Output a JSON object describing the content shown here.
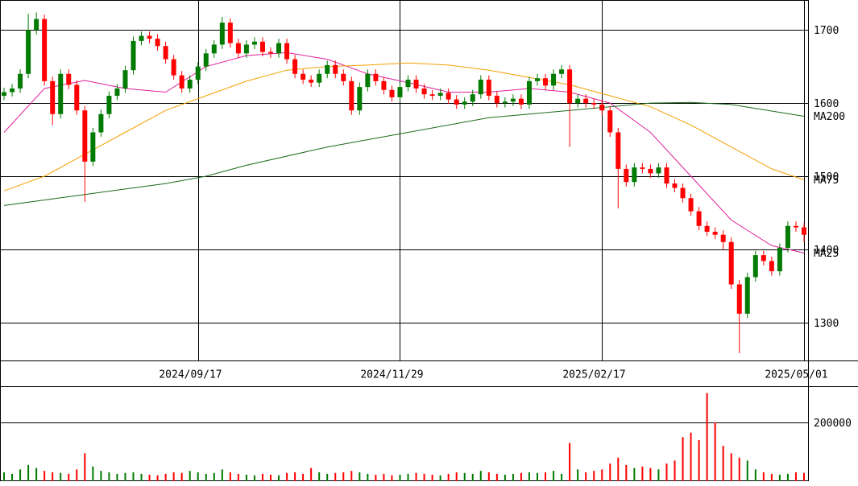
{
  "chart_data": {
    "type": "candlestick",
    "xlim": [
      -0.5,
      99.5
    ],
    "xticks": [
      {
        "value": 24,
        "label": "2024/09/17"
      },
      {
        "value": 49,
        "label": "2024/11/29"
      },
      {
        "value": 74,
        "label": "2025/02/17"
      },
      {
        "value": 99,
        "label": "2025/05/01"
      }
    ],
    "ylim": [
      1248,
      1741
    ],
    "yticks": [
      1300,
      1400,
      1500,
      1600,
      1700
    ],
    "volume_ylim": [
      0,
      323000
    ],
    "volume_yticks": [
      200000
    ],
    "up_color": "#007a00",
    "down_color": "#ff0000",
    "open": [
      1610,
      1615,
      1620,
      1640,
      1700,
      1715,
      1630,
      1585,
      1640,
      1625,
      1590,
      1520,
      1560,
      1585,
      1610,
      1620,
      1645,
      1685,
      1692,
      1688,
      1678,
      1660,
      1638,
      1620,
      1632,
      1650,
      1668,
      1680,
      1710,
      1682,
      1668,
      1680,
      1684,
      1670,
      1668,
      1682,
      1660,
      1640,
      1632,
      1628,
      1640,
      1652,
      1640,
      1630,
      1590,
      1622,
      1640,
      1630,
      1618,
      1608,
      1622,
      1632,
      1620,
      1612,
      1610,
      1614,
      1605,
      1598,
      1602,
      1612,
      1632,
      1610,
      1600,
      1602,
      1606,
      1598,
      1630,
      1634,
      1624,
      1640,
      1646,
      1600,
      1606,
      1600,
      1598,
      1590,
      1560,
      1510,
      1492,
      1512,
      1510,
      1504,
      1512,
      1490,
      1484,
      1470,
      1452,
      1432,
      1424,
      1420,
      1410,
      1352,
      1312,
      1362,
      1392,
      1384,
      1370,
      1402,
      1432,
      1430
    ],
    "high": [
      1621,
      1626,
      1646,
      1722,
      1724,
      1721,
      1636,
      1646,
      1646,
      1631,
      1596,
      1566,
      1591,
      1616,
      1626,
      1651,
      1691,
      1698,
      1698,
      1694,
      1684,
      1666,
      1644,
      1638,
      1656,
      1674,
      1686,
      1718,
      1716,
      1688,
      1686,
      1690,
      1690,
      1676,
      1688,
      1688,
      1666,
      1646,
      1638,
      1646,
      1658,
      1658,
      1646,
      1636,
      1628,
      1646,
      1646,
      1636,
      1624,
      1628,
      1638,
      1638,
      1626,
      1618,
      1620,
      1620,
      1611,
      1608,
      1618,
      1638,
      1638,
      1616,
      1608,
      1612,
      1612,
      1636,
      1640,
      1640,
      1646,
      1652,
      1652,
      1612,
      1612,
      1606,
      1604,
      1596,
      1566,
      1516,
      1518,
      1518,
      1516,
      1518,
      1518,
      1496,
      1490,
      1476,
      1458,
      1438,
      1430,
      1426,
      1416,
      1358,
      1368,
      1398,
      1398,
      1390,
      1408,
      1438,
      1438,
      1436
    ],
    "low": [
      1604,
      1609,
      1614,
      1634,
      1694,
      1624,
      1570,
      1579,
      1619,
      1584,
      1465,
      1514,
      1554,
      1579,
      1604,
      1614,
      1639,
      1679,
      1682,
      1672,
      1654,
      1632,
      1614,
      1614,
      1626,
      1644,
      1662,
      1674,
      1676,
      1662,
      1662,
      1674,
      1664,
      1662,
      1662,
      1654,
      1634,
      1626,
      1622,
      1622,
      1634,
      1634,
      1624,
      1584,
      1584,
      1616,
      1624,
      1612,
      1602,
      1602,
      1616,
      1614,
      1606,
      1604,
      1604,
      1599,
      1592,
      1592,
      1596,
      1606,
      1604,
      1594,
      1594,
      1596,
      1592,
      1592,
      1624,
      1618,
      1618,
      1634,
      1540,
      1594,
      1594,
      1592,
      1584,
      1554,
      1456,
      1486,
      1486,
      1504,
      1498,
      1498,
      1484,
      1478,
      1464,
      1446,
      1426,
      1418,
      1414,
      1400,
      1346,
      1258,
      1306,
      1356,
      1378,
      1364,
      1364,
      1396,
      1424,
      1410
    ],
    "close": [
      1615,
      1620,
      1640,
      1700,
      1715,
      1630,
      1585,
      1640,
      1625,
      1590,
      1520,
      1560,
      1585,
      1610,
      1620,
      1645,
      1685,
      1692,
      1688,
      1678,
      1660,
      1638,
      1620,
      1632,
      1650,
      1668,
      1680,
      1710,
      1682,
      1668,
      1680,
      1684,
      1670,
      1668,
      1682,
      1660,
      1640,
      1632,
      1628,
      1640,
      1652,
      1640,
      1630,
      1590,
      1622,
      1640,
      1630,
      1618,
      1608,
      1622,
      1632,
      1620,
      1612,
      1610,
      1614,
      1605,
      1598,
      1602,
      1612,
      1632,
      1610,
      1600,
      1602,
      1606,
      1598,
      1630,
      1634,
      1624,
      1640,
      1646,
      1600,
      1606,
      1600,
      1598,
      1590,
      1560,
      1510,
      1492,
      1512,
      1510,
      1504,
      1512,
      1490,
      1484,
      1470,
      1452,
      1432,
      1424,
      1420,
      1410,
      1352,
      1312,
      1362,
      1392,
      1384,
      1370,
      1402,
      1432,
      1430,
      1420
    ],
    "volume": [
      30000,
      25000,
      40000,
      55000,
      45000,
      35000,
      30000,
      28000,
      25000,
      40000,
      95000,
      50000,
      35000,
      30000,
      25000,
      28000,
      30000,
      25000,
      22000,
      20000,
      25000,
      30000,
      28000,
      35000,
      30000,
      25000,
      28000,
      40000,
      30000,
      25000,
      22000,
      20000,
      25000,
      22000,
      20000,
      28000,
      30000,
      25000,
      45000,
      30000,
      25000,
      28000,
      30000,
      35000,
      30000,
      25000,
      22000,
      25000,
      20000,
      22000,
      25000,
      28000,
      25000,
      22000,
      20000,
      25000,
      30000,
      28000,
      25000,
      35000,
      30000,
      25000,
      22000,
      25000,
      28000,
      30000,
      28000,
      30000,
      35000,
      25000,
      130000,
      40000,
      30000,
      35000,
      40000,
      60000,
      80000,
      55000,
      45000,
      50000,
      45000,
      40000,
      60000,
      70000,
      150000,
      165000,
      140000,
      300000,
      200000,
      120000,
      95000,
      80000,
      70000,
      40000,
      30000,
      25000,
      22000,
      25000,
      30000,
      28000
    ],
    "moving_averages": [
      {
        "name": "MA25",
        "color": "#e0209a",
        "x": [
          0,
          5,
          10,
          15,
          20,
          25,
          30,
          35,
          40,
          45,
          50,
          55,
          60,
          65,
          70,
          75,
          80,
          85,
          90,
          95,
          99
        ],
        "values": [
          1560,
          1620,
          1631,
          1620,
          1615,
          1650,
          1665,
          1669,
          1660,
          1640,
          1628,
          1615,
          1615,
          1620,
          1615,
          1600,
          1560,
          1500,
          1440,
          1405,
          1395
        ]
      },
      {
        "name": "MA75",
        "color": "#f5a000",
        "x": [
          0,
          5,
          10,
          15,
          20,
          25,
          30,
          35,
          40,
          45,
          50,
          55,
          60,
          65,
          70,
          75,
          80,
          85,
          90,
          95,
          99
        ],
        "values": [
          1480,
          1500,
          1530,
          1560,
          1590,
          1610,
          1630,
          1645,
          1650,
          1652,
          1655,
          1652,
          1645,
          1635,
          1625,
          1610,
          1595,
          1570,
          1540,
          1510,
          1495
        ]
      },
      {
        "name": "MA200",
        "color": "#1a6b1a",
        "x": [
          0,
          10,
          20,
          25,
          30,
          40,
          50,
          60,
          70,
          80,
          85,
          90,
          99
        ],
        "values": [
          1460,
          1475,
          1490,
          1500,
          1515,
          1540,
          1560,
          1580,
          1590,
          1600,
          1601,
          1598,
          1582
        ]
      }
    ]
  }
}
